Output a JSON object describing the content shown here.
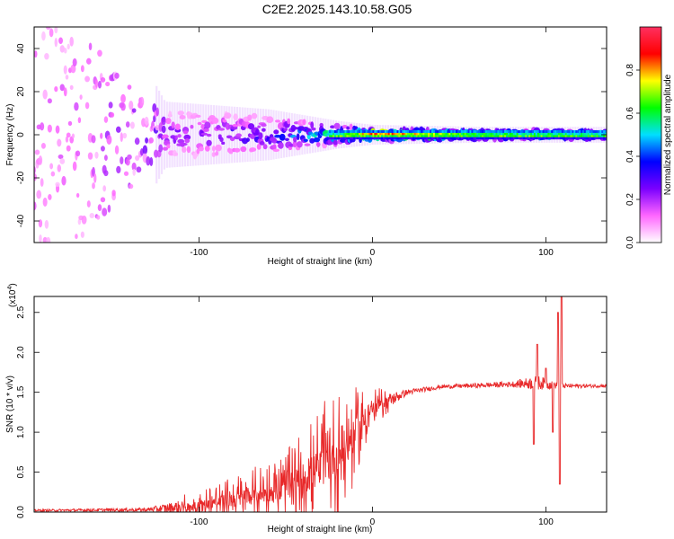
{
  "title": "C2E2.2025.143.10.58.G05",
  "colors": {
    "line": "#e8292a",
    "frame": "#000000"
  },
  "chart_data": [
    {
      "type": "heatmap",
      "xlabel": "Height of straight line (km)",
      "ylabel": "Frequency (Hz)",
      "xlim": [
        -195,
        135
      ],
      "ylim": [
        -50,
        50
      ],
      "xticks": [
        -100,
        0,
        100
      ],
      "xtick_labels": [
        "-100",
        "0",
        "100"
      ],
      "yticks": [
        -40,
        -20,
        0,
        20,
        40
      ],
      "ytick_labels": [
        "-40",
        "-20",
        "0",
        "20",
        "40"
      ],
      "colorbar": {
        "label": "Normalized spectral amplitude",
        "range": [
          0,
          1
        ],
        "ticks": [
          0.0,
          0.2,
          0.4,
          0.6,
          0.8
        ],
        "tick_labels": [
          "0.0",
          "0.2",
          "0.4",
          "0.6",
          "0.8"
        ],
        "stops": [
          "#ffffff",
          "#ff66ff",
          "#7a00ff",
          "#0000ff",
          "#00dfff",
          "#00ff00",
          "#ffff00",
          "#ff0000",
          "#ff3060"
        ]
      },
      "description_points": [
        {
          "x": -170,
          "spread": 48,
          "amp": 0.12
        },
        {
          "x": -120,
          "spread": 8,
          "amp": 0.22
        },
        {
          "x": -60,
          "spread": 6,
          "amp": 0.32
        },
        {
          "x": -20,
          "spread": 3,
          "amp": 0.55
        },
        {
          "x": 0,
          "spread": 2,
          "amp": 0.85
        },
        {
          "x": 60,
          "spread": 1.5,
          "amp": 0.6
        },
        {
          "x": 130,
          "spread": 1.5,
          "amp": 0.55
        }
      ]
    },
    {
      "type": "line",
      "xlabel": "Height of straight line (km)",
      "ylabel": "SNR (10 * v/v)",
      "multiplier": "(x10",
      "multiplier_exp": "4",
      "multiplier_close": ")",
      "xlim": [
        -195,
        135
      ],
      "ylim": [
        0,
        2.7
      ],
      "xticks": [
        -100,
        0,
        100
      ],
      "xtick_labels": [
        "-100",
        "0",
        "100"
      ],
      "yticks": [
        0.0,
        0.5,
        1.0,
        1.5,
        2.0,
        2.5
      ],
      "ytick_labels": [
        "0.0",
        "0.5",
        "1.0",
        "1.5",
        "2.0",
        "2.5"
      ],
      "series": [
        {
          "name": "SNR",
          "envelope": [
            {
              "x": -195,
              "base": 0.02,
              "noise": 0.02
            },
            {
              "x": -130,
              "base": 0.03,
              "noise": 0.04
            },
            {
              "x": -110,
              "base": 0.06,
              "noise": 0.15
            },
            {
              "x": -80,
              "base": 0.15,
              "noise": 0.3
            },
            {
              "x": -50,
              "base": 0.3,
              "noise": 0.45
            },
            {
              "x": -30,
              "base": 0.55,
              "noise": 0.8
            },
            {
              "x": -15,
              "base": 0.8,
              "noise": 0.8
            },
            {
              "x": 0,
              "base": 1.3,
              "noise": 0.25
            },
            {
              "x": 20,
              "base": 1.5,
              "noise": 0.06
            },
            {
              "x": 40,
              "base": 1.57,
              "noise": 0.04
            },
            {
              "x": 80,
              "base": 1.6,
              "noise": 0.06
            },
            {
              "x": 95,
              "base": 1.62,
              "noise": 0.15
            },
            {
              "x": 110,
              "base": 1.58,
              "noise": 0.05
            },
            {
              "x": 135,
              "base": 1.58,
              "noise": 0.03
            }
          ],
          "spikes": [
            {
              "x": 93,
              "value": 0.85
            },
            {
              "x": 95,
              "value": 2.1
            },
            {
              "x": 100,
              "value": 1.8
            },
            {
              "x": 104,
              "value": 1.0
            },
            {
              "x": 107,
              "value": 2.5
            },
            {
              "x": 108,
              "value": 0.35
            },
            {
              "x": 109,
              "value": 2.7
            }
          ]
        }
      ]
    }
  ]
}
